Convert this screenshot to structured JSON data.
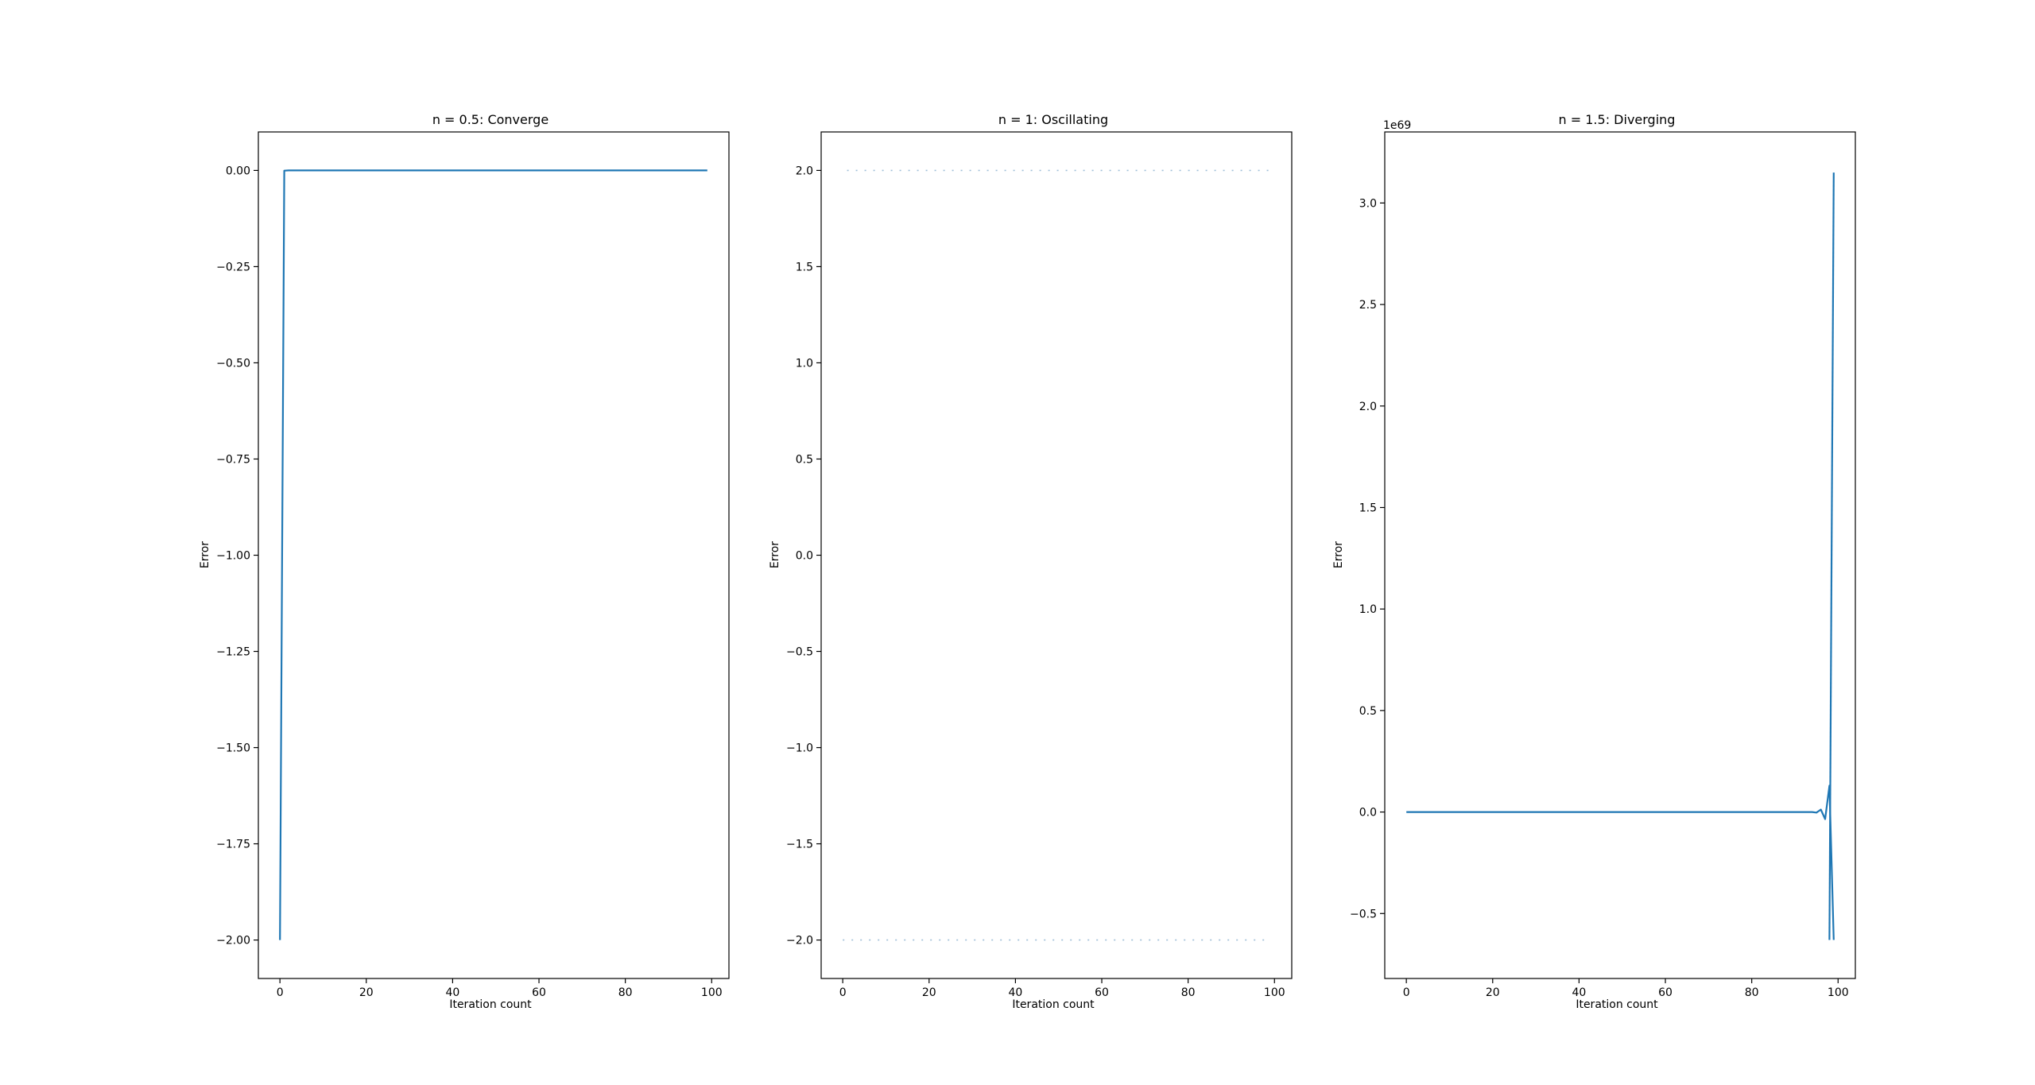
{
  "chart_data": [
    {
      "type": "line",
      "title": "n = 0.5: Converge",
      "xlabel": "Iteration count",
      "ylabel": "Error",
      "xlim": [
        -5,
        104
      ],
      "ylim": [
        -2.1,
        0.1
      ],
      "x_ticks": [
        "0",
        "20",
        "40",
        "60",
        "80",
        "100"
      ],
      "x_tick_values": [
        0,
        20,
        40,
        60,
        80,
        100
      ],
      "y_ticks": [
        "0.00",
        "−0.25",
        "−0.50",
        "−0.75",
        "−1.00",
        "−1.25",
        "−1.50",
        "−1.75",
        "−2.00"
      ],
      "y_tick_values": [
        0,
        -0.25,
        -0.5,
        -0.75,
        -1.0,
        -1.25,
        -1.5,
        -1.75,
        -2.0
      ],
      "offset_label": "",
      "line_style": "solid",
      "color": "#1f77b4",
      "series": [
        {
          "x": [
            0,
            1,
            2,
            3,
            4,
            5,
            99
          ],
          "values": [
            -2.0,
            -0.0005,
            0,
            0,
            0,
            0,
            0
          ]
        }
      ]
    },
    {
      "type": "line",
      "title": "n = 1: Oscillating",
      "xlabel": "Iteration count",
      "ylabel": "Error",
      "xlim": [
        -5,
        104
      ],
      "ylim": [
        -2.2,
        2.2
      ],
      "x_ticks": [
        "0",
        "20",
        "40",
        "60",
        "80",
        "100"
      ],
      "x_tick_values": [
        0,
        20,
        40,
        60,
        80,
        100
      ],
      "y_ticks": [
        "2.0",
        "1.5",
        "1.0",
        "0.5",
        "0.0",
        "−0.5",
        "−1.0",
        "−1.5",
        "−2.0"
      ],
      "y_tick_values": [
        2.0,
        1.5,
        1.0,
        0.5,
        0.0,
        -0.5,
        -1.0,
        -1.5,
        -2.0
      ],
      "offset_label": "",
      "line_style": "dotted",
      "color": "#9fbfd8",
      "series": [
        {
          "x": [
            1,
            99
          ],
          "values": [
            2.0,
            2.0
          ]
        },
        {
          "x": [
            0,
            99
          ],
          "values": [
            -2.0,
            -2.0
          ]
        }
      ]
    },
    {
      "type": "line",
      "title": "n = 1.5: Diverging",
      "xlabel": "Iteration count",
      "ylabel": "Error",
      "xlim": [
        -5,
        104
      ],
      "ylim": [
        -0.82,
        3.35
      ],
      "x_ticks": [
        "0",
        "20",
        "40",
        "60",
        "80",
        "100"
      ],
      "x_tick_values": [
        0,
        20,
        40,
        60,
        80,
        100
      ],
      "y_ticks": [
        "3.0",
        "2.5",
        "2.0",
        "1.5",
        "1.0",
        "0.5",
        "0.0",
        "−0.5"
      ],
      "y_tick_values": [
        3.0,
        2.5,
        2.0,
        1.5,
        1.0,
        0.5,
        0.0,
        -0.5
      ],
      "offset_label": "1e69",
      "line_style": "solid",
      "color": "#1f77b4",
      "series": [
        {
          "x": [
            0,
            94,
            95,
            96,
            97,
            98,
            99
          ],
          "values": [
            0,
            0,
            -0.003,
            0.012,
            -0.035,
            0.13,
            -0.63
          ]
        },
        {
          "x": [
            98,
            99
          ],
          "values": [
            -0.63,
            3.15
          ]
        }
      ]
    }
  ]
}
